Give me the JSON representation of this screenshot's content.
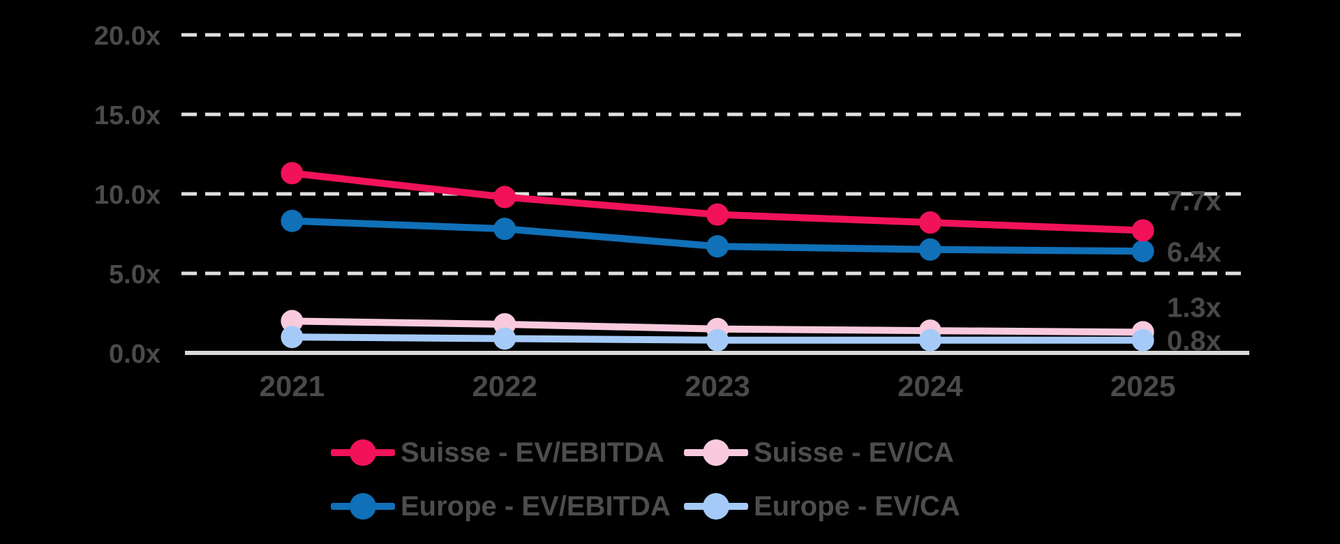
{
  "chart_data": {
    "type": "line",
    "title": "",
    "x": [
      "2021",
      "2022",
      "2023",
      "2024",
      "2025"
    ],
    "yticks": [
      "0.0x",
      "5.0x",
      "10.0x",
      "15.0x",
      "20.0x"
    ],
    "ylim": [
      0,
      20
    ],
    "grid": "horizontal-dashed",
    "legend_position": "bottom",
    "series": [
      {
        "name": "Suisse - EV/EBITDA",
        "color": "#F1125A",
        "values": [
          11.3,
          9.8,
          8.7,
          8.2,
          7.7
        ],
        "end_label": "7.7x"
      },
      {
        "name": "Europe - EV/EBITDA",
        "color": "#1070B8",
        "values": [
          8.3,
          7.8,
          6.7,
          6.5,
          6.4
        ],
        "end_label": "6.4x"
      },
      {
        "name": "Suisse - EV/CA",
        "color": "#F9CADD",
        "values": [
          2.0,
          1.8,
          1.5,
          1.4,
          1.3
        ],
        "end_label": "1.3x"
      },
      {
        "name": "Europe - EV/CA",
        "color": "#A6CAF8",
        "values": [
          1.0,
          0.9,
          0.8,
          0.8,
          0.8
        ],
        "end_label": "0.8x"
      }
    ],
    "colors": {
      "text": "#4A4A4C",
      "end_label": "#48484A",
      "gridline": "#E0E0E0",
      "axis": "#D9D9D9",
      "background": "#000000"
    }
  }
}
